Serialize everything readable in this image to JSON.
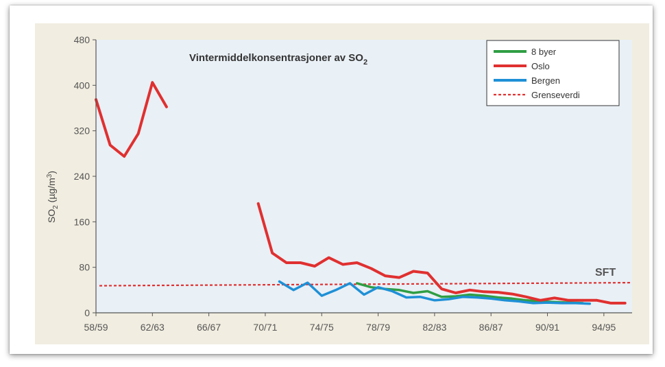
{
  "chart_data": {
    "type": "line",
    "title": "Vintermiddelkonsentrasjoner av SO",
    "title_subscript": "2",
    "ylabel": "SO2 (µg/m3)",
    "ylim": [
      0,
      480
    ],
    "yticks": [
      0,
      80,
      160,
      240,
      320,
      400,
      480
    ],
    "xlim": [
      1958,
      1996
    ],
    "xticks": [
      {
        "value": 1958,
        "label": "58/59"
      },
      {
        "value": 1962,
        "label": "62/63"
      },
      {
        "value": 1966,
        "label": "66/67"
      },
      {
        "value": 1970,
        "label": "70/71"
      },
      {
        "value": 1974,
        "label": "74/75"
      },
      {
        "value": 1978,
        "label": "78/79"
      },
      {
        "value": 1982,
        "label": "82/83"
      },
      {
        "value": 1986,
        "label": "86/87"
      },
      {
        "value": 1990,
        "label": "90/91"
      },
      {
        "value": 1994,
        "label": "94/95"
      }
    ],
    "legend_position": "top-right",
    "grid": false,
    "annotation": "SFT",
    "threshold": {
      "name": "Grenseverdi",
      "value": 50,
      "slope_end": 53,
      "color": "#e03030"
    },
    "series": [
      {
        "name": "Oslo",
        "color": "#e03030",
        "segments": [
          [
            [
              1958,
              375
            ],
            [
              1959,
              295
            ],
            [
              1960,
              275
            ],
            [
              1961,
              315
            ],
            [
              1962,
              405
            ],
            [
              1963,
              362
            ]
          ],
          [
            [
              1969.5,
              192
            ],
            [
              1970.5,
              105
            ],
            [
              1971.5,
              88
            ],
            [
              1972.5,
              88
            ],
            [
              1973.5,
              82
            ],
            [
              1974.5,
              97
            ],
            [
              1975.5,
              85
            ],
            [
              1976.5,
              88
            ],
            [
              1977.5,
              78
            ],
            [
              1978.5,
              65
            ],
            [
              1979.5,
              62
            ],
            [
              1980.5,
              73
            ],
            [
              1981.5,
              70
            ],
            [
              1982.5,
              42
            ],
            [
              1983.5,
              35
            ],
            [
              1984.5,
              40
            ],
            [
              1985.5,
              37
            ],
            [
              1986.5,
              36
            ],
            [
              1987.5,
              33
            ],
            [
              1988.5,
              28
            ],
            [
              1989.5,
              22
            ],
            [
              1990.5,
              26
            ],
            [
              1991.5,
              22
            ],
            [
              1992.5,
              22
            ],
            [
              1993.5,
              22
            ],
            [
              1994.5,
              17
            ],
            [
              1995.5,
              17
            ]
          ]
        ]
      },
      {
        "name": "8 byer",
        "color": "#2f9e44",
        "segments": [
          [
            [
              1976.5,
              52
            ],
            [
              1977.5,
              45
            ],
            [
              1978.5,
              42
            ],
            [
              1979.5,
              40
            ],
            [
              1980.5,
              35
            ],
            [
              1981.5,
              38
            ],
            [
              1982.5,
              28
            ],
            [
              1983.5,
              29
            ],
            [
              1984.5,
              32
            ],
            [
              1985.5,
              30
            ],
            [
              1986.5,
              27
            ],
            [
              1987.5,
              25
            ],
            [
              1988.5,
              22
            ],
            [
              1989.5,
              20
            ],
            [
              1990.5,
              19
            ],
            [
              1991.5,
              18
            ],
            [
              1992.5,
              17
            ]
          ]
        ]
      },
      {
        "name": "Bergen",
        "color": "#1e90d6",
        "segments": [
          [
            [
              1971,
              55
            ],
            [
              1972,
              40
            ],
            [
              1973,
              53
            ],
            [
              1974,
              30
            ],
            [
              1975,
              40
            ],
            [
              1976,
              52
            ],
            [
              1977,
              32
            ],
            [
              1978,
              45
            ],
            [
              1979,
              38
            ],
            [
              1980,
              27
            ],
            [
              1981,
              28
            ],
            [
              1982,
              22
            ],
            [
              1983,
              24
            ],
            [
              1984,
              28
            ],
            [
              1985,
              27
            ],
            [
              1986,
              25
            ],
            [
              1987,
              22
            ],
            [
              1988,
              20
            ],
            [
              1989,
              17
            ],
            [
              1990,
              18
            ],
            [
              1991,
              17
            ],
            [
              1992,
              17
            ],
            [
              1993,
              16
            ]
          ]
        ]
      }
    ]
  },
  "legend": [
    {
      "label": "8 byer",
      "color": "#2f9e44",
      "style": "solid"
    },
    {
      "label": "Oslo",
      "color": "#e03030",
      "style": "solid"
    },
    {
      "label": "Bergen",
      "color": "#1e90d6",
      "style": "solid"
    },
    {
      "label": "Grenseverdi",
      "color": "#e03030",
      "style": "dashed"
    }
  ]
}
